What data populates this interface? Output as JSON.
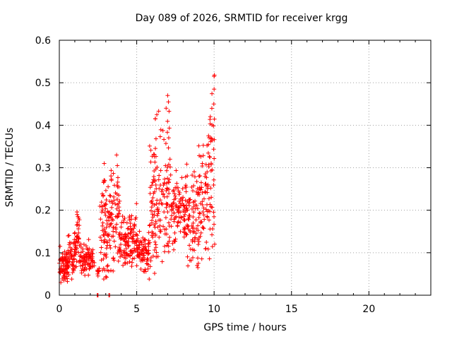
{
  "chart_data": {
    "type": "scatter",
    "title": "Day 089 of 2026, SRMTID for receiver krgg",
    "xlabel": "GPS time / hours",
    "ylabel": "SRMTID / TECUs",
    "xlim": [
      0,
      24
    ],
    "ylim": [
      0,
      0.6
    ],
    "xticks": [
      "0",
      "5",
      "10",
      "15",
      "20"
    ],
    "yticks": [
      "0",
      "0.1",
      "0.2",
      "0.3",
      "0.4",
      "0.5",
      "0.6"
    ],
    "grid": true,
    "marker": "+",
    "color": "#ff0000",
    "series": [
      {
        "name": "SRMTID",
        "segments": [
          {
            "t0": 0.0,
            "t1": 0.55,
            "base": 0.065,
            "amp": 0.035,
            "n": 70
          },
          {
            "t0": 0.55,
            "t1": 1.1,
            "base": 0.1,
            "amp": 0.045,
            "n": 60
          },
          {
            "t0": 1.1,
            "t1": 1.3,
            "base": 0.13,
            "amp": 0.06,
            "n": 25
          },
          {
            "t0": 1.3,
            "t1": 2.3,
            "base": 0.085,
            "amp": 0.035,
            "n": 90
          },
          {
            "t0": 2.45,
            "t1": 2.6,
            "base": 0.055,
            "amp": 0.01,
            "n": 10
          },
          {
            "t0": 2.6,
            "t1": 3.2,
            "base": 0.17,
            "amp": 0.12,
            "n": 70
          },
          {
            "t0": 3.2,
            "t1": 3.9,
            "base": 0.19,
            "amp": 0.11,
            "n": 75
          },
          {
            "t0": 3.9,
            "t1": 4.4,
            "base": 0.12,
            "amp": 0.05,
            "n": 55
          },
          {
            "t0": 4.4,
            "t1": 5.0,
            "base": 0.14,
            "amp": 0.06,
            "n": 60
          },
          {
            "t0": 5.0,
            "t1": 5.8,
            "base": 0.1,
            "amp": 0.045,
            "n": 80
          },
          {
            "t0": 5.8,
            "t1": 6.4,
            "base": 0.23,
            "amp": 0.16,
            "n": 75
          },
          {
            "t0": 6.4,
            "t1": 7.2,
            "base": 0.25,
            "amp": 0.17,
            "n": 80
          },
          {
            "t0": 7.2,
            "t1": 8.2,
            "base": 0.2,
            "amp": 0.08,
            "n": 95
          },
          {
            "t0": 8.2,
            "t1": 9.0,
            "base": 0.18,
            "amp": 0.09,
            "n": 80
          },
          {
            "t0": 9.0,
            "t1": 9.6,
            "base": 0.22,
            "amp": 0.11,
            "n": 60
          },
          {
            "t0": 9.6,
            "t1": 10.05,
            "base": 0.27,
            "amp": 0.2,
            "n": 50
          }
        ],
        "points": [
          [
            2.45,
            0.0
          ],
          [
            2.48,
            0.0
          ],
          [
            2.5,
            0.0
          ],
          [
            3.2,
            0.0
          ],
          [
            3.25,
            0.0
          ],
          [
            10.0,
            0.515
          ],
          [
            10.02,
            0.518
          ],
          [
            10.0,
            0.485
          ],
          [
            9.98,
            0.45
          ],
          [
            7.0,
            0.47
          ],
          [
            7.05,
            0.455
          ],
          [
            6.9,
            0.44
          ],
          [
            6.2,
            0.415
          ],
          [
            6.3,
            0.425
          ],
          [
            3.7,
            0.33
          ],
          [
            3.75,
            0.305
          ],
          [
            2.9,
            0.31
          ],
          [
            8.95,
            0.065
          ],
          [
            8.9,
            0.07
          ],
          [
            0.05,
            0.115
          ],
          [
            0.1,
            0.03
          ],
          [
            1.15,
            0.19
          ],
          [
            1.2,
            0.185
          ]
        ]
      }
    ]
  }
}
